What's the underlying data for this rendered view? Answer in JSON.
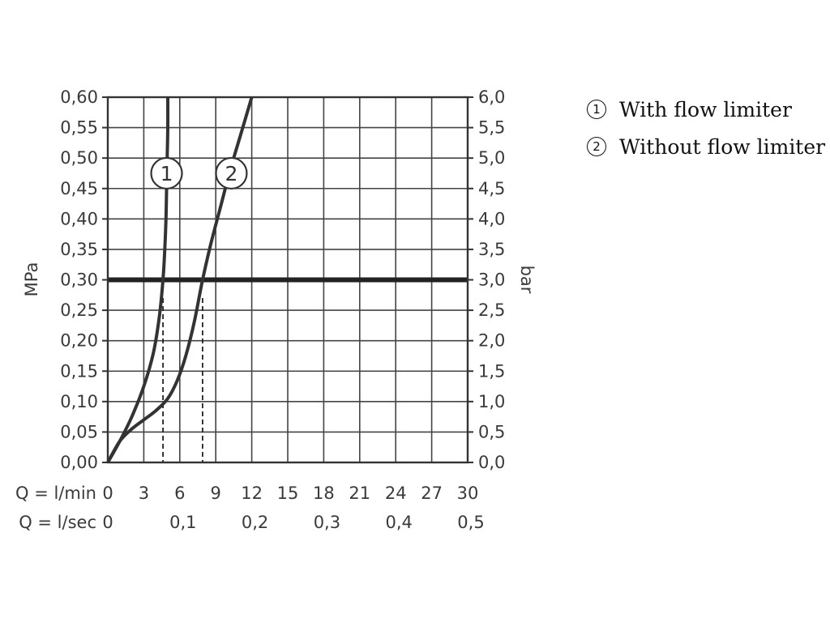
{
  "chart_data": {
    "type": "line",
    "title": "",
    "x_axis": {
      "label_primary": "Q = l/min",
      "ticks_primary": [
        "0",
        "3",
        "6",
        "9",
        "12",
        "15",
        "18",
        "21",
        "24",
        "27",
        "30"
      ],
      "label_secondary": "Q = l/sec",
      "ticks_secondary": [
        "0",
        "0,1",
        "0,2",
        "0,3",
        "0,4",
        "0,5"
      ],
      "range": [
        0,
        30
      ]
    },
    "y_axis_left": {
      "label": "MPa",
      "ticks": [
        "0,00",
        "0,05",
        "0,10",
        "0,15",
        "0,20",
        "0,25",
        "0,30",
        "0,35",
        "0,40",
        "0,45",
        "0,50",
        "0,55",
        "0,60"
      ],
      "range": [
        0,
        0.6
      ]
    },
    "y_axis_right": {
      "label": "bar",
      "ticks": [
        "0,0",
        "0,5",
        "1,0",
        "1,5",
        "2,0",
        "2,5",
        "3,0",
        "3,5",
        "4,0",
        "4,5",
        "5,0",
        "5,5",
        "6,0"
      ],
      "range": [
        0,
        6
      ]
    },
    "grid": true,
    "reference_line": {
      "y": 0.3
    },
    "series": [
      {
        "name": "1",
        "x": [
          0,
          1,
          2,
          3,
          3.8,
          4.3,
          4.6,
          4.75,
          4.85,
          4.9,
          4.95,
          5.0,
          5.0
        ],
        "y": [
          0,
          0.035,
          0.075,
          0.125,
          0.18,
          0.24,
          0.3,
          0.35,
          0.4,
          0.45,
          0.5,
          0.55,
          0.6
        ],
        "marker_at": [
          4.9,
          0.475
        ]
      },
      {
        "name": "2",
        "x": [
          0,
          1,
          2,
          3,
          4,
          5,
          5.8,
          6.5,
          7.2,
          7.9,
          8.6,
          9.4,
          10.2,
          11.1,
          12.0
        ],
        "y": [
          0,
          0.035,
          0.055,
          0.07,
          0.085,
          0.105,
          0.135,
          0.175,
          0.23,
          0.3,
          0.36,
          0.42,
          0.48,
          0.54,
          0.6
        ],
        "marker_at": [
          10.3,
          0.475
        ]
      }
    ],
    "drop_lines": [
      {
        "x": 4.6,
        "y": 0.27
      },
      {
        "x": 7.9,
        "y": 0.27
      }
    ],
    "legend": [
      {
        "marker": "1",
        "label": "With flow limiter"
      },
      {
        "marker": "2",
        "label": "Without flow limiter"
      }
    ]
  }
}
